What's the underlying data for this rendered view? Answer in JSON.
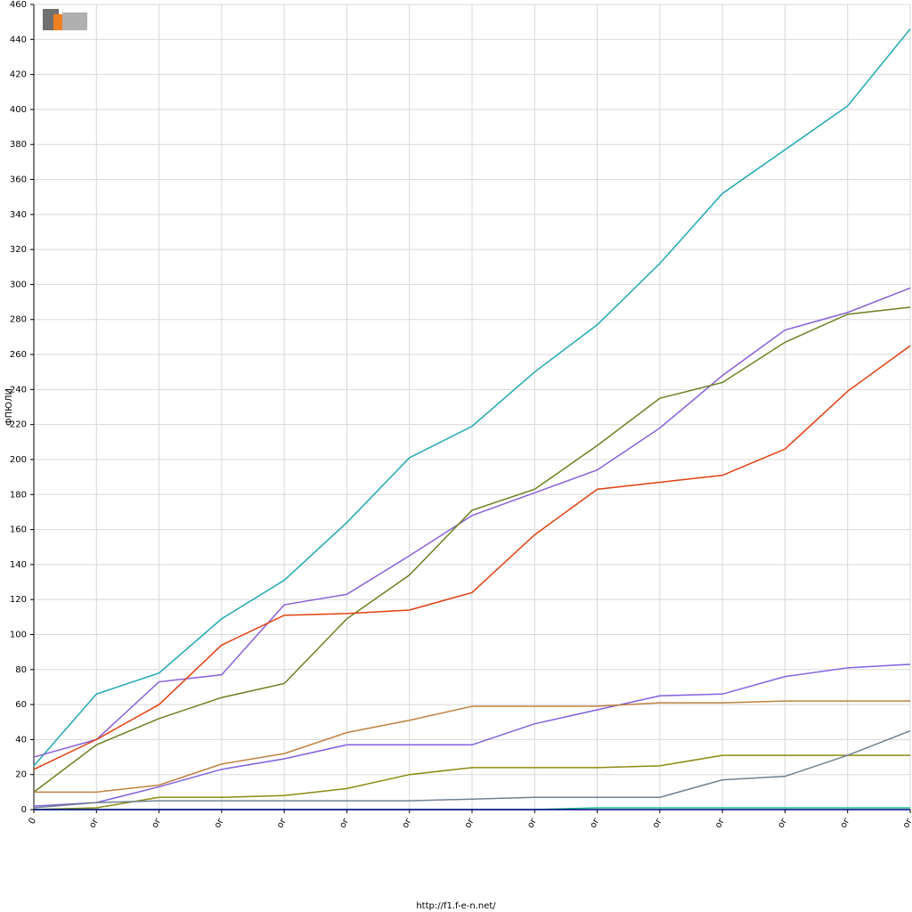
{
  "chart_data": {
    "type": "line",
    "y_label": "ФПЮЛИ",
    "footer": "http://f1.f-e-n.net/",
    "categories": [
      "0",
      "ог",
      "ог",
      "ог",
      "ог",
      "ог",
      "ог",
      "ог",
      "ог",
      "ог",
      "ог",
      "ог",
      "ог",
      "ог",
      "ог"
    ],
    "series": [
      {
        "color": "#20a8b0",
        "values": [
          25,
          66,
          78,
          109,
          131,
          164,
          201,
          219,
          250,
          277,
          312,
          352,
          377,
          402,
          446
        ]
      },
      {
        "color": "#8a60d8",
        "values": [
          30,
          40,
          73,
          77,
          117,
          123,
          145,
          168,
          181,
          194,
          218,
          248,
          274,
          284,
          298
        ]
      },
      {
        "color": "#6b8020",
        "values": [
          10,
          37,
          52,
          64,
          72,
          109,
          134,
          171,
          183,
          208,
          235,
          244,
          267,
          283,
          287
        ]
      },
      {
        "color": "#e04010",
        "values": [
          23,
          40,
          60,
          94,
          111,
          112,
          114,
          124,
          157,
          183,
          187,
          191,
          206,
          239,
          265
        ]
      },
      {
        "color": "#8060e0",
        "values": [
          2,
          4,
          13,
          23,
          29,
          37,
          37,
          37,
          49,
          57,
          65,
          66,
          76,
          81,
          83
        ]
      },
      {
        "color": "#c08040",
        "values": [
          10,
          10,
          14,
          26,
          32,
          44,
          51,
          59,
          59,
          59,
          61,
          61,
          62,
          62,
          62
        ]
      },
      {
        "color": "#8a8a10",
        "values": [
          0,
          1,
          7,
          7,
          8,
          12,
          20,
          24,
          24,
          24,
          25,
          31,
          31,
          31,
          31
        ]
      },
      {
        "color": "#708090",
        "values": [
          1,
          4,
          5,
          5,
          5,
          5,
          5,
          6,
          7,
          7,
          7,
          17,
          19,
          31,
          45
        ]
      },
      {
        "color": "#20c090",
        "values": [
          0,
          0,
          0,
          0,
          0,
          0,
          0,
          0,
          0,
          1,
          1,
          1,
          1,
          1,
          1
        ]
      },
      {
        "color": "#000080",
        "values": [
          0,
          0,
          0,
          0,
          0,
          0,
          0,
          0,
          0,
          0,
          0,
          0,
          0,
          0,
          0
        ]
      }
    ],
    "ylim": [
      0,
      460
    ],
    "yticks": [
      0,
      20,
      40,
      60,
      80,
      100,
      120,
      140,
      160,
      180,
      200,
      220,
      240,
      260,
      280,
      300,
      320,
      340,
      360,
      380,
      400,
      420,
      440,
      460
    ],
    "grid": true
  }
}
